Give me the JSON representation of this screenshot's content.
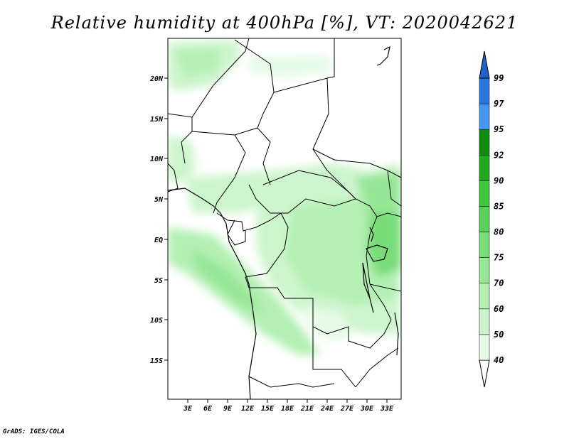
{
  "title": "Relative humidity at 400hPa [%], VT: 2020042621",
  "credit": "GrADS: IGES/COLA",
  "map": {
    "lat_ticks": [
      "20N",
      "15N",
      "10N",
      "5N",
      "EQ",
      "5S",
      "10S",
      "15S"
    ],
    "lon_ticks": [
      "3E",
      "6E",
      "9E",
      "12E",
      "15E",
      "18E",
      "21E",
      "24E",
      "27E",
      "30E",
      "33E"
    ]
  },
  "colorbar": {
    "levels": [
      "40",
      "50",
      "60",
      "70",
      "75",
      "80",
      "85",
      "90",
      "92",
      "95",
      "97",
      "99"
    ],
    "colors": [
      "#ffffff",
      "#e6fae6",
      "#cdf5cd",
      "#b4f0b4",
      "#96e696",
      "#78dc78",
      "#5ad25a",
      "#3cc83c",
      "#1eaa1e",
      "#0f8c0f",
      "#4696f0",
      "#2878dc",
      "#1e64c8"
    ]
  }
}
